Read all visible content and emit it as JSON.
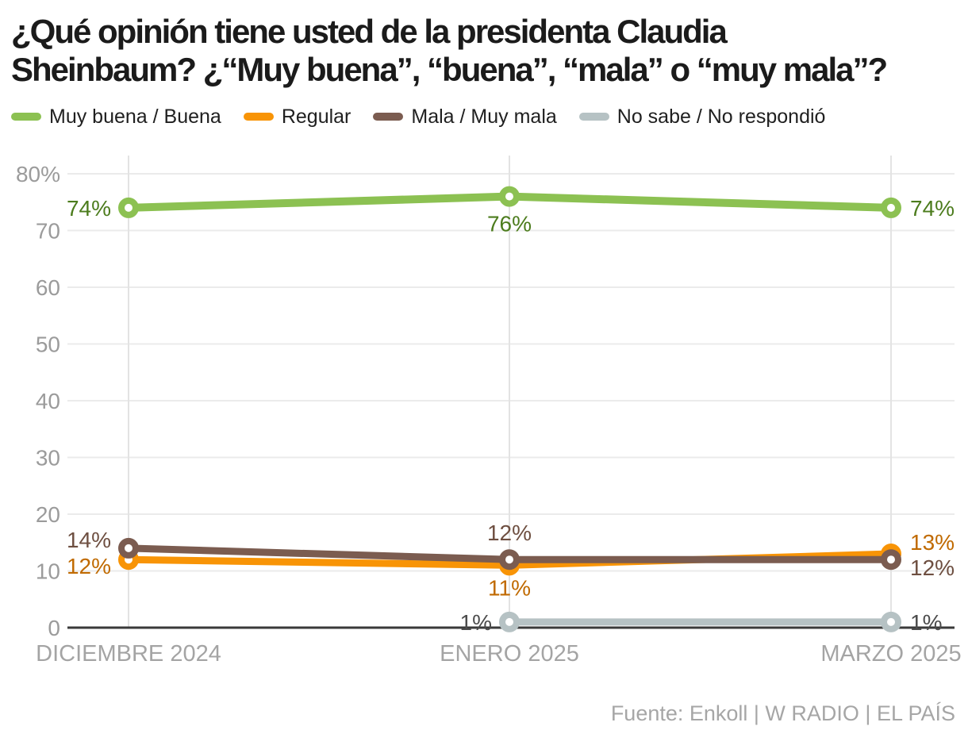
{
  "title_lines": [
    "¿Qué opinión tiene usted de la presidenta Claudia",
    "Sheinbaum? ¿“Muy buena”, “buena”, “mala” o “muy mala”?"
  ],
  "source": "Fuente: Enkoll | W RADIO | EL PAÍS",
  "chart_data": {
    "type": "line",
    "title": "¿Qué opinión tiene usted de la presidenta Claudia Sheinbaum? ¿“Muy buena”, “buena”, “mala” o “muy mala”?",
    "categories": [
      "DICIEMBRE 2024",
      "ENERO 2025",
      "MARZO 2025"
    ],
    "y_axis": {
      "ticks": [
        0,
        10,
        20,
        30,
        40,
        50,
        60,
        70,
        80
      ],
      "top_tick_label": "80%",
      "ylim": [
        0,
        80
      ],
      "grid": true
    },
    "legend_position": "top",
    "series": [
      {
        "name": "Muy buena / Buena",
        "color": "#8CC152",
        "label_color": "#4C7C1D",
        "values": [
          74,
          76,
          74
        ],
        "point_labels": [
          "74%",
          "76%",
          "74%"
        ],
        "label_positions": [
          "left",
          "below",
          "right"
        ]
      },
      {
        "name": "Regular",
        "color": "#F89406",
        "label_color": "#C06A00",
        "values": [
          12,
          11,
          13
        ],
        "point_labels": [
          "12%",
          "11%",
          "13%"
        ],
        "label_positions": [
          "left",
          "below",
          "right"
        ]
      },
      {
        "name": "Mala / Muy mala",
        "color": "#7B5C50",
        "label_color": "#6E4F41",
        "values": [
          14,
          12,
          12
        ],
        "point_labels": [
          "14%",
          "12%",
          "12%"
        ],
        "label_positions": [
          "left",
          "above",
          "right"
        ]
      },
      {
        "name": "No sabe / No respondió",
        "color": "#B6C2C4",
        "label_color": "#4C4C4C",
        "values": [
          null,
          1,
          1
        ],
        "point_labels": [
          null,
          "1%",
          "1%"
        ],
        "label_positions": [
          null,
          "left",
          "right"
        ]
      }
    ]
  }
}
